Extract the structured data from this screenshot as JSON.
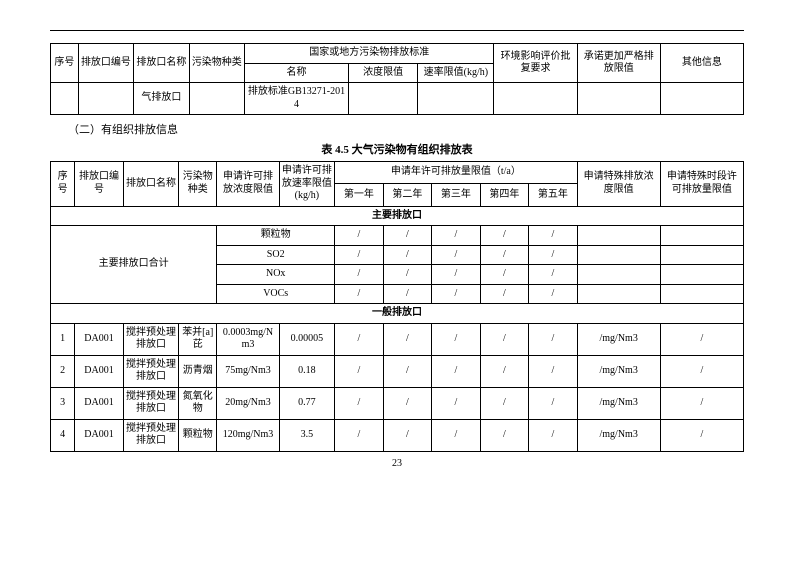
{
  "page_number": "23",
  "table1": {
    "headers": {
      "seq": "序号",
      "outlet_id": "排放口编号",
      "outlet_name": "排放口名称",
      "pollutant_type": "污染物种类",
      "national_std_group": "国家或地方污染物排放标准",
      "std_name": "名称",
      "conc_limit": "浓度限值",
      "rate_limit": "速率限值(kg/h)",
      "env_req": "环境影响评价批复要求",
      "commit_limit": "承诺更加严格排放限值",
      "other": "其他信息"
    },
    "row": {
      "seq": "",
      "outlet_id": "",
      "outlet_name": "气排放口",
      "pollutant_type": "",
      "std_name": "排放标准GB13271-2014",
      "conc_limit": "",
      "rate_limit": "",
      "env_req": "",
      "commit_limit": "",
      "other": ""
    }
  },
  "section_label": "（二）有组织排放信息",
  "table2_title": "表 4.5  大气污染物有组织排放表",
  "table2": {
    "headers": {
      "seq": "序号",
      "outlet_id": "排放口编号",
      "outlet_name": "排放口名称",
      "pollutant_type": "污染物种类",
      "apply_conc": "申请许可排放浓度限值",
      "apply_rate": "申请许可排放速率限值(kg/h)",
      "annual_group": "申请年许可排放量限值（t/a）",
      "y1": "第一年",
      "y2": "第二年",
      "y3": "第三年",
      "y4": "第四年",
      "y5": "第五年",
      "special_conc": "申请特殊排放浓度限值",
      "special_time": "申请特殊时段许可排放量限值"
    },
    "section_main": "主要排放口",
    "main_total_label": "主要排放口合计",
    "main_rows": [
      {
        "p": "颗粒物",
        "y1": "/",
        "y2": "/",
        "y3": "/",
        "y4": "/",
        "y5": "/",
        "a": "",
        "b": ""
      },
      {
        "p": "SO2",
        "y1": "/",
        "y2": "/",
        "y3": "/",
        "y4": "/",
        "y5": "/",
        "a": "",
        "b": ""
      },
      {
        "p": "NOx",
        "y1": "/",
        "y2": "/",
        "y3": "/",
        "y4": "/",
        "y5": "/",
        "a": "",
        "b": ""
      },
      {
        "p": "VOCs",
        "y1": "/",
        "y2": "/",
        "y3": "/",
        "y4": "/",
        "y5": "/",
        "a": "",
        "b": ""
      }
    ],
    "section_general": "一般排放口",
    "general_rows": [
      {
        "seq": "1",
        "id": "DA001",
        "name": "搅拌预处理排放口",
        "p": "苯并[a]芘",
        "conc": "0.0003mg/Nm3",
        "rate": "0.00005",
        "y1": "/",
        "y2": "/",
        "y3": "/",
        "y4": "/",
        "y5": "/",
        "sc": "/mg/Nm3",
        "st": "/"
      },
      {
        "seq": "2",
        "id": "DA001",
        "name": "搅拌预处理排放口",
        "p": "沥青烟",
        "conc": "75mg/Nm3",
        "rate": "0.18",
        "y1": "/",
        "y2": "/",
        "y3": "/",
        "y4": "/",
        "y5": "/",
        "sc": "/mg/Nm3",
        "st": "/"
      },
      {
        "seq": "3",
        "id": "DA001",
        "name": "搅拌预处理排放口",
        "p": "氮氧化物",
        "conc": "20mg/Nm3",
        "rate": "0.77",
        "y1": "/",
        "y2": "/",
        "y3": "/",
        "y4": "/",
        "y5": "/",
        "sc": "/mg/Nm3",
        "st": "/"
      },
      {
        "seq": "4",
        "id": "DA001",
        "name": "搅拌预处理排放口",
        "p": "颗粒物",
        "conc": "120mg/Nm3",
        "rate": "3.5",
        "y1": "/",
        "y2": "/",
        "y3": "/",
        "y4": "/",
        "y5": "/",
        "sc": "/mg/Nm3",
        "st": "/"
      }
    ]
  }
}
